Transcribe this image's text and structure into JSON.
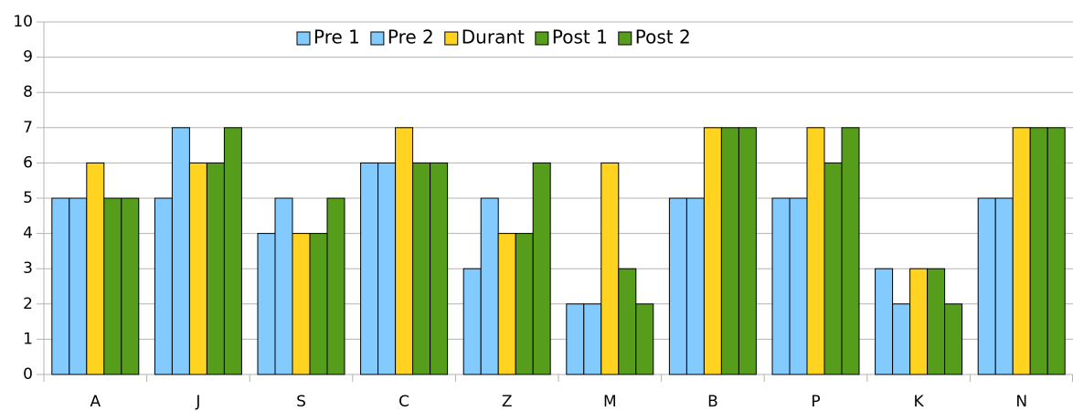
{
  "chart_data": {
    "type": "bar",
    "categories": [
      "A",
      "J",
      "S",
      "C",
      "Z",
      "M",
      "B",
      "P",
      "K",
      "N"
    ],
    "series": [
      {
        "name": "Pre 1",
        "color": "#83caff",
        "values": [
          5,
          5,
          4,
          6,
          3,
          2,
          5,
          5,
          3,
          5
        ]
      },
      {
        "name": "Pre 2",
        "color": "#83caff",
        "values": [
          5,
          7,
          5,
          6,
          5,
          2,
          5,
          5,
          2,
          5
        ]
      },
      {
        "name": "Durant",
        "color": "#ffd320",
        "values": [
          6,
          6,
          4,
          7,
          4,
          6,
          7,
          7,
          3,
          7
        ]
      },
      {
        "name": "Post 1",
        "color": "#579d1c",
        "values": [
          5,
          6,
          4,
          6,
          4,
          3,
          7,
          6,
          3,
          7
        ]
      },
      {
        "name": "Post 2",
        "color": "#579d1c",
        "values": [
          5,
          7,
          5,
          6,
          6,
          2,
          7,
          7,
          2,
          7
        ]
      }
    ],
    "ylim": [
      0,
      10
    ],
    "yticks": [
      0,
      1,
      2,
      3,
      4,
      5,
      6,
      7,
      8,
      9,
      10
    ],
    "grid": true,
    "legend": "top"
  }
}
